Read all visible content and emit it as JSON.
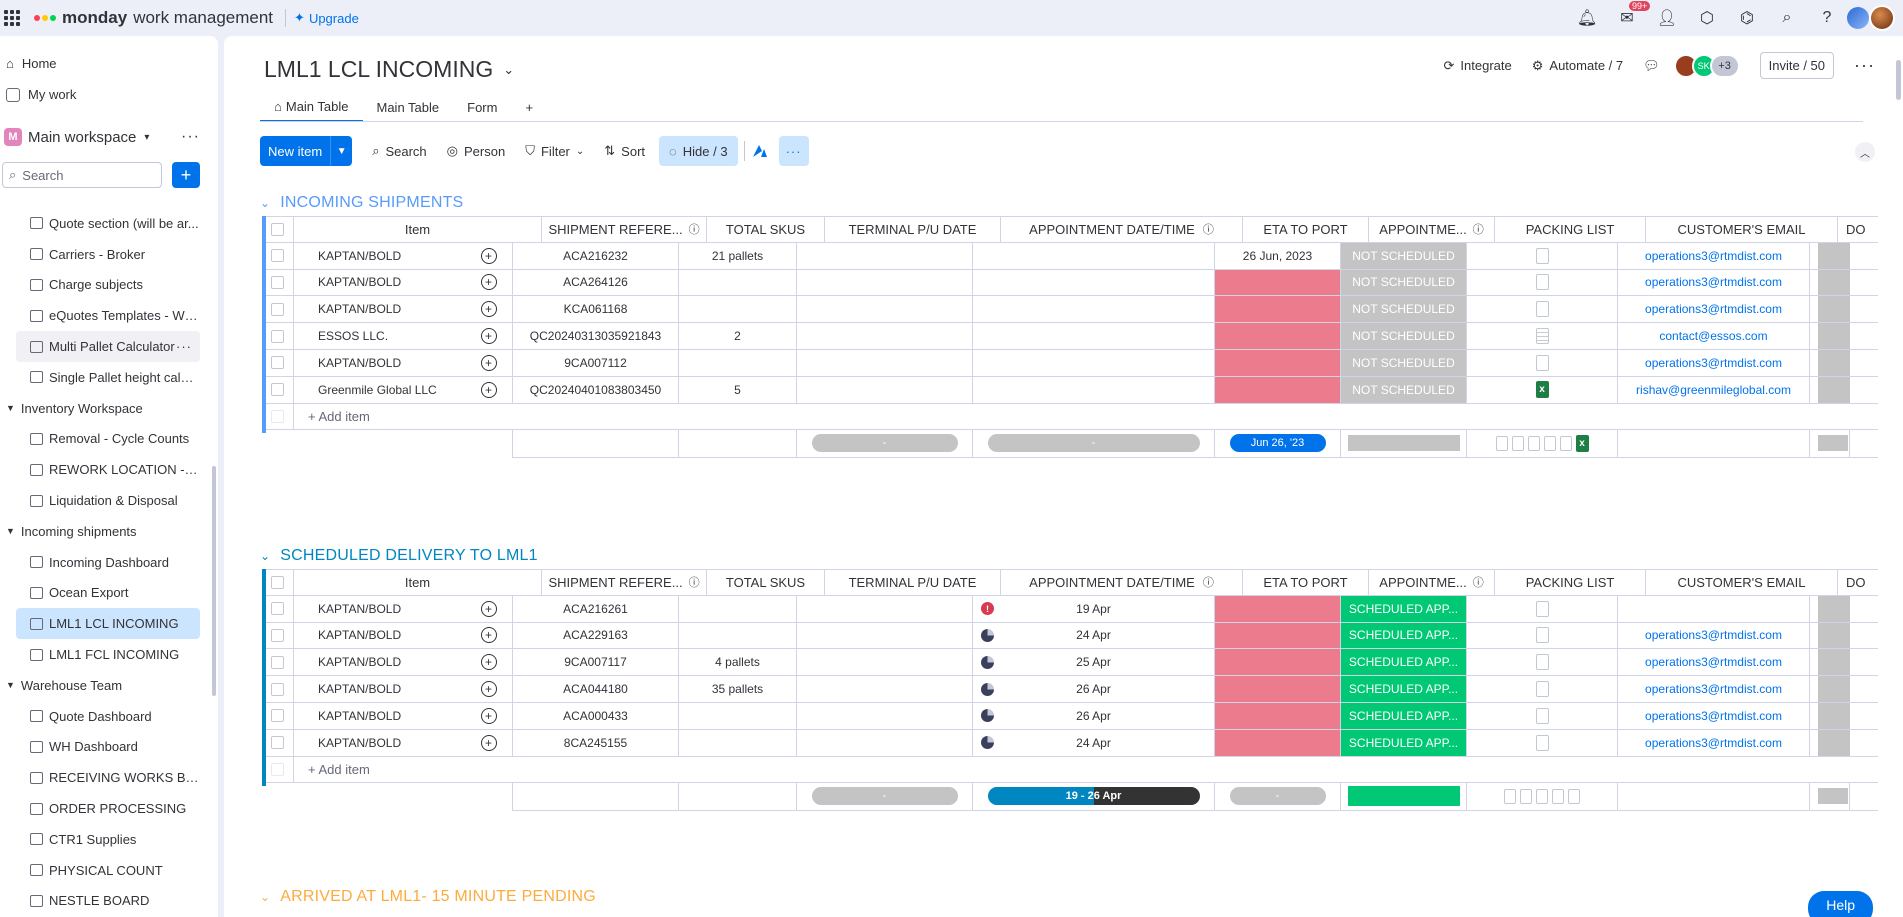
{
  "app": {
    "brand": "monday",
    "brand_sub": "work management",
    "upgrade": "Upgrade",
    "notif_count": "99+"
  },
  "sidebar": {
    "home": "Home",
    "my_work": "My work",
    "workspace_badge": "M",
    "workspace": "Main workspace",
    "search_placeholder": "Search",
    "tree": [
      {
        "type": "item",
        "label": "Quote section (will be ar..."
      },
      {
        "type": "item",
        "label": "Carriers - Broker"
      },
      {
        "type": "item",
        "label": "Charge subjects"
      },
      {
        "type": "item",
        "label": "eQuotes Templates - WCL"
      },
      {
        "type": "item",
        "label": "Multi Pallet Calculator",
        "state": "hover"
      },
      {
        "type": "item",
        "label": "Single Pallet height calcu..."
      },
      {
        "type": "folder",
        "label": "Inventory Workspace"
      },
      {
        "type": "item",
        "label": "Removal - Cycle Counts"
      },
      {
        "type": "item",
        "label": "REWORK LOCATION -M..."
      },
      {
        "type": "item",
        "label": "Liquidation & Disposal"
      },
      {
        "type": "folder",
        "label": "Incoming shipments"
      },
      {
        "type": "item",
        "label": "Incoming Dashboard"
      },
      {
        "type": "item",
        "label": "Ocean Export"
      },
      {
        "type": "item",
        "label": "LML1 LCL INCOMING",
        "state": "active"
      },
      {
        "type": "item",
        "label": "LML1 FCL INCOMING"
      },
      {
        "type": "folder",
        "label": "Warehouse Team"
      },
      {
        "type": "item",
        "label": "Quote Dashboard"
      },
      {
        "type": "item",
        "label": "WH Dashboard"
      },
      {
        "type": "item",
        "label": "RECEIVING WORKS BO..."
      },
      {
        "type": "item",
        "label": "ORDER PROCESSING"
      },
      {
        "type": "item",
        "label": "CTR1 Supplies"
      },
      {
        "type": "item",
        "label": "PHYSICAL COUNT"
      },
      {
        "type": "item",
        "label": "NESTLE BOARD"
      }
    ]
  },
  "board": {
    "title": "LML1 LCL INCOMING",
    "integrate": "Integrate",
    "automate": "Automate / 7",
    "avatar_initials": "SK",
    "avatar_more": "+3",
    "invite": "Invite / 50",
    "tabs": [
      "Main Table",
      "Main Table",
      "Form"
    ],
    "tab_add": "+",
    "toolbar": {
      "new_item": "New item",
      "search": "Search",
      "person": "Person",
      "filter": "Filter",
      "sort": "Sort",
      "hide": "Hide / 3"
    },
    "columns": {
      "item": "Item",
      "ref": "SHIPMENT REFERE...",
      "skus": "TOTAL SKUS",
      "term": "TERMINAL P/U DATE",
      "appt": "APPOINTMENT DATE/TIME",
      "eta": "ETA TO PORT",
      "stat": "APPOINTME...",
      "pack": "PACKING LIST",
      "email": "CUSTOMER'S EMAIL",
      "do": "DO"
    },
    "add_item": "+ Add item",
    "help": "Help"
  },
  "groups": [
    {
      "title": "INCOMING SHIPMENTS",
      "color": "#579bfc",
      "rows": [
        {
          "item": "KAPTAN/BOLD",
          "ref": "ACA216232",
          "skus": "21 pallets",
          "appt": "",
          "appt_icon": "",
          "eta": "26 Jun, 2023",
          "eta_red": false,
          "status": "NOT SCHEDULED",
          "file": "doc",
          "email": "operations3@rtmdist.com"
        },
        {
          "item": "KAPTAN/BOLD",
          "ref": "ACA264126",
          "skus": "",
          "appt": "",
          "appt_icon": "",
          "eta": "",
          "eta_red": true,
          "status": "NOT SCHEDULED",
          "file": "doc",
          "email": "operations3@rtmdist.com"
        },
        {
          "item": "KAPTAN/BOLD",
          "ref": "KCA061168",
          "skus": "",
          "appt": "",
          "appt_icon": "",
          "eta": "",
          "eta_red": true,
          "status": "NOT SCHEDULED",
          "file": "doc",
          "email": "operations3@rtmdist.com"
        },
        {
          "item": "ESSOS LLC.",
          "ref": "QC20240313035921843",
          "skus": "2",
          "appt": "",
          "appt_icon": "",
          "eta": "",
          "eta_red": true,
          "status": "NOT SCHEDULED",
          "file": "pdf",
          "email": "contact@essos.com"
        },
        {
          "item": "KAPTAN/BOLD",
          "ref": "9CA007112",
          "skus": "",
          "appt": "",
          "appt_icon": "",
          "eta": "",
          "eta_red": true,
          "status": "NOT SCHEDULED",
          "file": "doc",
          "email": "operations3@rtmdist.com"
        },
        {
          "item": "Greenmile Global LLC",
          "ref": "QC20240401083803450",
          "skus": "5",
          "appt": "",
          "appt_icon": "",
          "eta": "",
          "eta_red": true,
          "status": "NOT SCHEDULED",
          "file": "xls",
          "email": "rishav@greenmileglobal.com"
        }
      ],
      "summary": {
        "term": "-",
        "appt": "-",
        "eta": "Jun 26, '23",
        "eta_style": "blue",
        "stat_style": "gray",
        "appt_style": "gray"
      }
    },
    {
      "title": "SCHEDULED DELIVERY TO LML1",
      "color": "#0086c0",
      "rows": [
        {
          "item": "KAPTAN/BOLD",
          "ref": "ACA216261",
          "skus": "",
          "appt": "19 Apr",
          "appt_icon": "alert",
          "eta": "",
          "eta_red": true,
          "status": "SCHEDULED APP...",
          "file": "doc",
          "email": ""
        },
        {
          "item": "KAPTAN/BOLD",
          "ref": "ACA229163",
          "skus": "",
          "appt": "24 Apr",
          "appt_icon": "clock",
          "eta": "",
          "eta_red": true,
          "status": "SCHEDULED APP...",
          "file": "doc",
          "email": "operations3@rtmdist.com"
        },
        {
          "item": "KAPTAN/BOLD",
          "ref": "9CA007117",
          "skus": "4 pallets",
          "appt": "25 Apr",
          "appt_icon": "clock",
          "eta": "",
          "eta_red": true,
          "status": "SCHEDULED APP...",
          "file": "doc",
          "email": "operations3@rtmdist.com"
        },
        {
          "item": "KAPTAN/BOLD",
          "ref": "ACA044180",
          "skus": "35 pallets",
          "appt": "26 Apr",
          "appt_icon": "clock",
          "eta": "",
          "eta_red": true,
          "status": "SCHEDULED APP...",
          "file": "doc",
          "email": "operations3@rtmdist.com"
        },
        {
          "item": "KAPTAN/BOLD",
          "ref": "ACA000433",
          "skus": "",
          "appt": "26 Apr",
          "appt_icon": "clock",
          "eta": "",
          "eta_red": true,
          "status": "SCHEDULED APP...",
          "file": "doc",
          "email": "operations3@rtmdist.com"
        },
        {
          "item": "KAPTAN/BOLD",
          "ref": "8CA245155",
          "skus": "",
          "appt": "24 Apr",
          "appt_icon": "clock",
          "eta": "",
          "eta_red": true,
          "status": "SCHEDULED APP...",
          "file": "doc",
          "email": "operations3@rtmdist.com"
        }
      ],
      "summary": {
        "term": "-",
        "appt": "19 - 26 Apr",
        "eta": "-",
        "eta_style": "gray",
        "stat_style": "green",
        "appt_style": "range"
      }
    },
    {
      "title": "ARRIVED AT LML1- 15 MINUTE PENDING",
      "color": "#fdab3d",
      "rows": []
    }
  ]
}
